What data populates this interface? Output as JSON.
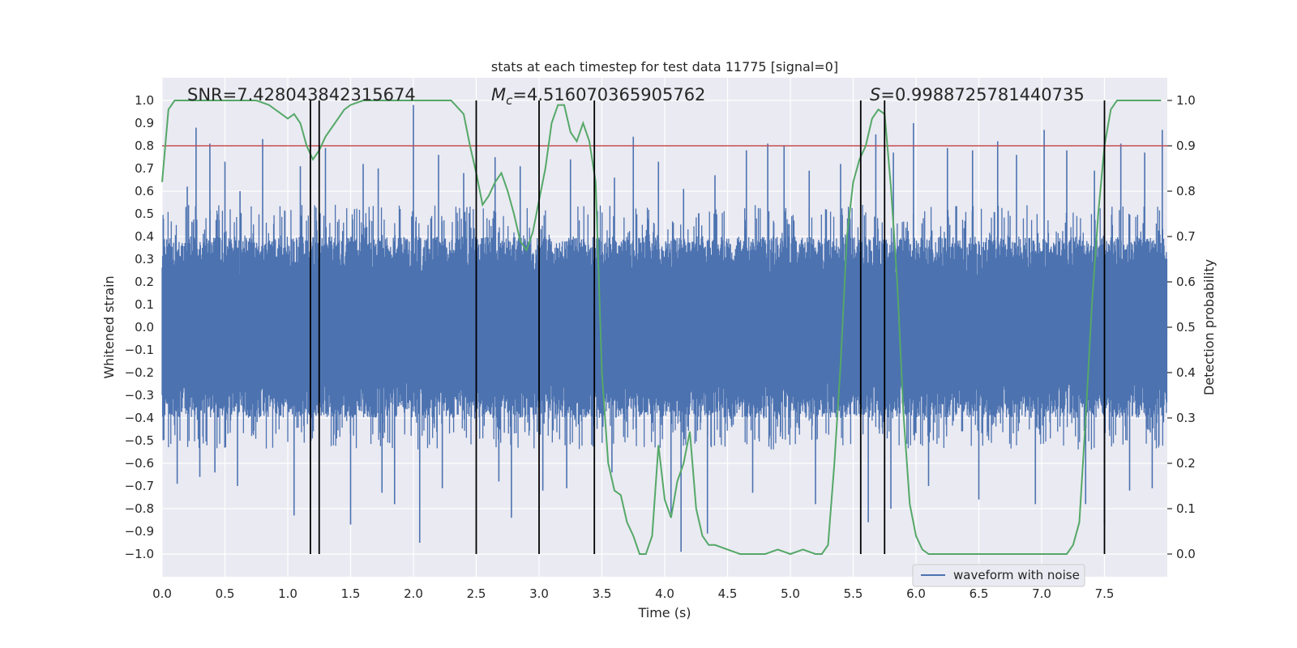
{
  "chart_data": {
    "type": "line",
    "title": "stats at each timestep for test data 11775 [signal=0]",
    "xlabel": "Time (s)",
    "ylabel_left": "Whitened strain",
    "ylabel_right": "Detection probability",
    "xlim": [
      0.0,
      8.0
    ],
    "ylim_left": [
      -1.1,
      1.1
    ],
    "ylim_right": [
      -0.05,
      1.05
    ],
    "x_ticks": [
      "0.0",
      "0.5",
      "1.0",
      "1.5",
      "2.0",
      "2.5",
      "3.0",
      "3.5",
      "4.0",
      "4.5",
      "5.0",
      "5.5",
      "6.0",
      "6.5",
      "7.0",
      "7.5"
    ],
    "x_tick_values": [
      0.0,
      0.5,
      1.0,
      1.5,
      2.0,
      2.5,
      3.0,
      3.5,
      4.0,
      4.5,
      5.0,
      5.5,
      6.0,
      6.5,
      7.0,
      7.5
    ],
    "y_left_ticks": [
      "1.0",
      "0.9",
      "0.8",
      "0.7",
      "0.6",
      "0.5",
      "0.4",
      "0.3",
      "0.2",
      "0.1",
      "0.0",
      "−0.1",
      "−0.2",
      "−0.3",
      "−0.4",
      "−0.5",
      "−0.6",
      "−0.7",
      "−0.8",
      "−0.9",
      "−1.0"
    ],
    "y_left_tick_values": [
      1.0,
      0.9,
      0.8,
      0.7,
      0.6,
      0.5,
      0.4,
      0.3,
      0.2,
      0.1,
      0.0,
      -0.1,
      -0.2,
      -0.3,
      -0.4,
      -0.5,
      -0.6,
      -0.7,
      -0.8,
      -0.9,
      -1.0
    ],
    "y_right_ticks": [
      "1.0",
      "0.9",
      "0.8",
      "0.7",
      "0.6",
      "0.5",
      "0.4",
      "0.3",
      "0.2",
      "0.1",
      "0.0"
    ],
    "y_right_tick_values": [
      1.0,
      0.9,
      0.8,
      0.7,
      0.6,
      0.5,
      0.4,
      0.3,
      0.2,
      0.1,
      0.0
    ],
    "annotations": {
      "snr": "SNR=7.428043842315674",
      "mc_symbol": "M",
      "mc_subscript": "c",
      "mc_value": "=4.516070365905762",
      "s_symbol": "S",
      "s_value": "=0.9988725781440735"
    },
    "threshold": 0.9,
    "vertical_lines": [
      1.18,
      1.25,
      2.5,
      3.0,
      3.44,
      5.56,
      5.75,
      7.5
    ],
    "legend": {
      "label": "waveform with noise",
      "position": "lower-right"
    },
    "series": [
      {
        "name": "waveform with noise",
        "axis": "left",
        "color": "#4c72b0",
        "envelope": {
          "typical_abs": 0.4,
          "max_positive": 0.98,
          "min_negative": -1.0
        },
        "spikes": [
          [
            0.2,
            0.62
          ],
          [
            0.27,
            0.88
          ],
          [
            0.38,
            0.81
          ],
          [
            0.5,
            0.73
          ],
          [
            0.62,
            0.6
          ],
          [
            0.8,
            0.83
          ],
          [
            1.1,
            0.71
          ],
          [
            1.3,
            0.79
          ],
          [
            1.6,
            0.72
          ],
          [
            1.72,
            0.7
          ],
          [
            2.0,
            0.98
          ],
          [
            2.2,
            0.76
          ],
          [
            2.4,
            0.68
          ],
          [
            2.65,
            0.75
          ],
          [
            2.85,
            0.71
          ],
          [
            3.25,
            0.74
          ],
          [
            3.6,
            0.66
          ],
          [
            3.75,
            0.84
          ],
          [
            3.95,
            0.73
          ],
          [
            4.15,
            0.61
          ],
          [
            4.4,
            0.67
          ],
          [
            4.65,
            0.78
          ],
          [
            4.82,
            0.81
          ],
          [
            4.95,
            0.8
          ],
          [
            5.15,
            0.69
          ],
          [
            5.4,
            0.72
          ],
          [
            5.68,
            0.85
          ],
          [
            5.82,
            0.77
          ],
          [
            5.98,
            0.9
          ],
          [
            6.25,
            0.79
          ],
          [
            6.45,
            0.78
          ],
          [
            6.65,
            0.82
          ],
          [
            6.8,
            0.76
          ],
          [
            7.02,
            0.87
          ],
          [
            7.2,
            0.78
          ],
          [
            7.42,
            0.69
          ],
          [
            7.63,
            0.81
          ],
          [
            7.82,
            0.77
          ],
          [
            7.96,
            0.87
          ],
          [
            0.12,
            -0.69
          ],
          [
            0.3,
            -0.66
          ],
          [
            0.42,
            -0.64
          ],
          [
            0.6,
            -0.7
          ],
          [
            1.05,
            -0.83
          ],
          [
            1.5,
            -0.87
          ],
          [
            1.75,
            -0.73
          ],
          [
            1.85,
            -0.78
          ],
          [
            2.05,
            -0.95
          ],
          [
            2.23,
            -0.71
          ],
          [
            2.68,
            -0.68
          ],
          [
            2.78,
            -0.84
          ],
          [
            3.03,
            -0.72
          ],
          [
            3.22,
            -0.71
          ],
          [
            3.58,
            -0.64
          ],
          [
            4.05,
            -0.82
          ],
          [
            4.13,
            -0.99
          ],
          [
            4.34,
            -0.91
          ],
          [
            4.7,
            -0.73
          ],
          [
            5.2,
            -0.78
          ],
          [
            5.62,
            -0.86
          ],
          [
            5.8,
            -0.8
          ],
          [
            6.1,
            -0.7
          ],
          [
            6.5,
            -0.76
          ],
          [
            6.95,
            -0.78
          ],
          [
            7.35,
            -0.78
          ],
          [
            7.5,
            -0.87
          ],
          [
            7.7,
            -0.72
          ],
          [
            7.88,
            -0.71
          ]
        ]
      },
      {
        "name": "Detection probability",
        "axis": "right",
        "color": "#55a868",
        "x": [
          0.0,
          0.05,
          0.1,
          0.2,
          0.3,
          0.45,
          0.6,
          0.75,
          0.85,
          0.95,
          1.0,
          1.05,
          1.1,
          1.15,
          1.2,
          1.25,
          1.3,
          1.4,
          1.45,
          1.5,
          1.6,
          1.7,
          1.8,
          1.9,
          2.0,
          2.1,
          2.2,
          2.3,
          2.4,
          2.45,
          2.5,
          2.55,
          2.6,
          2.65,
          2.7,
          2.75,
          2.8,
          2.85,
          2.9,
          2.95,
          3.0,
          3.05,
          3.1,
          3.15,
          3.2,
          3.25,
          3.3,
          3.35,
          3.4,
          3.45,
          3.5,
          3.55,
          3.6,
          3.65,
          3.7,
          3.75,
          3.8,
          3.85,
          3.9,
          3.95,
          4.0,
          4.05,
          4.1,
          4.15,
          4.2,
          4.25,
          4.3,
          4.35,
          4.4,
          4.5,
          4.6,
          4.7,
          4.8,
          4.9,
          5.0,
          5.1,
          5.2,
          5.25,
          5.3,
          5.35,
          5.4,
          5.45,
          5.5,
          5.55,
          5.6,
          5.65,
          5.7,
          5.75,
          5.8,
          5.85,
          5.9,
          5.95,
          6.0,
          6.05,
          6.1,
          6.2,
          6.4,
          6.6,
          6.8,
          7.0,
          7.1,
          7.2,
          7.25,
          7.3,
          7.35,
          7.4,
          7.45,
          7.5,
          7.55,
          7.6,
          7.7,
          7.8,
          7.9,
          7.95
        ],
        "values": [
          0.82,
          0.98,
          1.0,
          1.0,
          1.0,
          1.0,
          1.0,
          1.0,
          0.99,
          0.97,
          0.96,
          0.97,
          0.95,
          0.9,
          0.87,
          0.89,
          0.92,
          0.96,
          0.98,
          0.99,
          1.0,
          1.0,
          1.0,
          1.0,
          1.0,
          1.0,
          1.0,
          1.0,
          0.97,
          0.9,
          0.84,
          0.77,
          0.79,
          0.82,
          0.84,
          0.8,
          0.75,
          0.69,
          0.67,
          0.71,
          0.78,
          0.85,
          0.95,
          0.99,
          0.99,
          0.93,
          0.91,
          0.95,
          0.91,
          0.82,
          0.4,
          0.2,
          0.14,
          0.13,
          0.07,
          0.04,
          0.0,
          0.0,
          0.04,
          0.24,
          0.12,
          0.08,
          0.16,
          0.2,
          0.27,
          0.1,
          0.04,
          0.02,
          0.02,
          0.01,
          0.0,
          0.0,
          0.0,
          0.01,
          0.0,
          0.01,
          0.0,
          0.0,
          0.02,
          0.2,
          0.42,
          0.7,
          0.82,
          0.87,
          0.9,
          0.96,
          0.98,
          0.97,
          0.81,
          0.6,
          0.31,
          0.11,
          0.04,
          0.01,
          0.0,
          0.0,
          0.0,
          0.0,
          0.0,
          0.0,
          0.0,
          0.0,
          0.02,
          0.07,
          0.3,
          0.55,
          0.75,
          0.9,
          0.98,
          1.0,
          1.0,
          1.0,
          1.0,
          1.0
        ]
      }
    ]
  }
}
